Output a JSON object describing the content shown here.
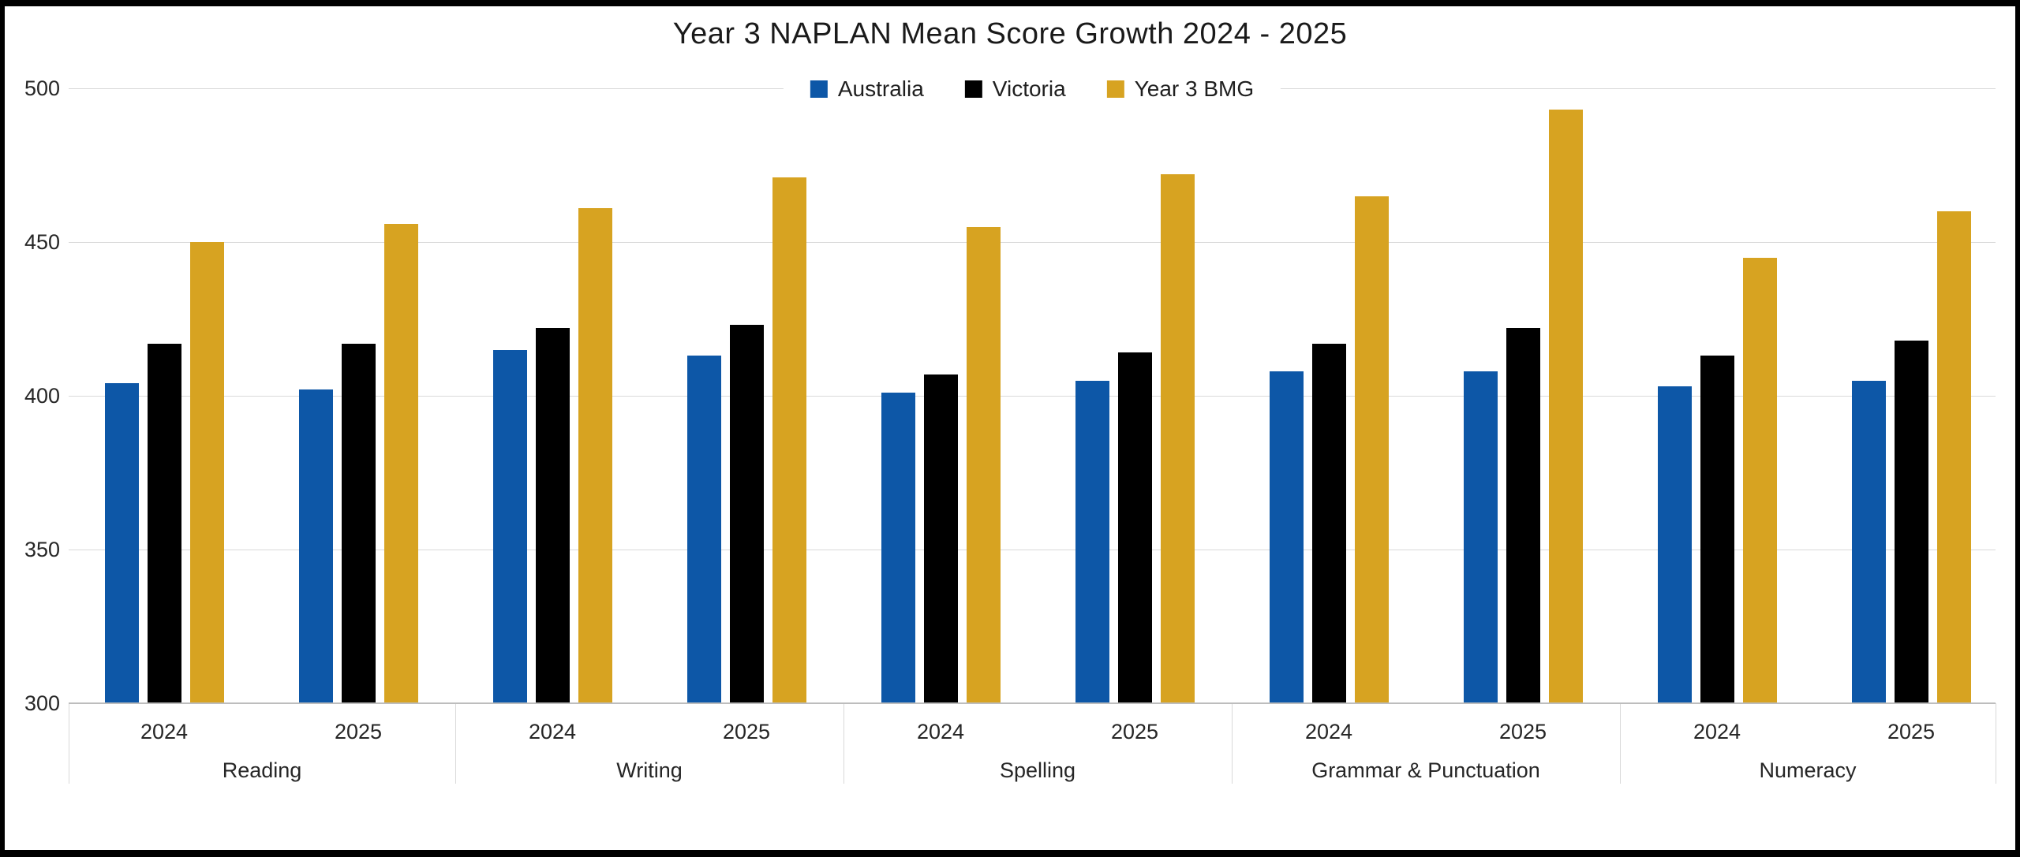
{
  "title": "Year 3 NAPLAN Mean Score Growth 2024 - 2025",
  "chart_data": {
    "type": "bar",
    "title": "Year 3 NAPLAN Mean Score Growth 2024 - 2025",
    "groups": [
      "Reading",
      "Writing",
      "Spelling",
      "Grammar & Punctuation",
      "Numeracy"
    ],
    "years_per_group": [
      "2024",
      "2025"
    ],
    "categories": [
      "Reading 2024",
      "Reading 2025",
      "Writing 2024",
      "Writing 2025",
      "Spelling 2024",
      "Spelling 2025",
      "Grammar & Punctuation 2024",
      "Grammar & Punctuation 2025",
      "Numeracy 2024",
      "Numeracy 2025"
    ],
    "series": [
      {
        "name": "Australia",
        "color": "#0d57a7",
        "values": [
          404,
          402,
          415,
          413,
          401,
          405,
          408,
          408,
          403,
          405
        ]
      },
      {
        "name": "Victoria",
        "color": "#000000",
        "values": [
          417,
          417,
          422,
          423,
          407,
          414,
          417,
          422,
          413,
          418
        ]
      },
      {
        "name": "Year 3 BMG",
        "color": "#d7a321",
        "values": [
          450,
          456,
          461,
          471,
          455,
          472,
          465,
          493,
          445,
          460
        ]
      }
    ],
    "ylim": [
      300,
      500
    ],
    "y_ticks": [
      500,
      450,
      400,
      350,
      300
    ],
    "grid": "horizontal",
    "legend_position": "top-center",
    "gridline_color": "#d9d9d9",
    "axis_line_color": "#bdbdbd",
    "text_color": "#262626",
    "background_color": "#ffffff",
    "frame_color": "#000000"
  }
}
